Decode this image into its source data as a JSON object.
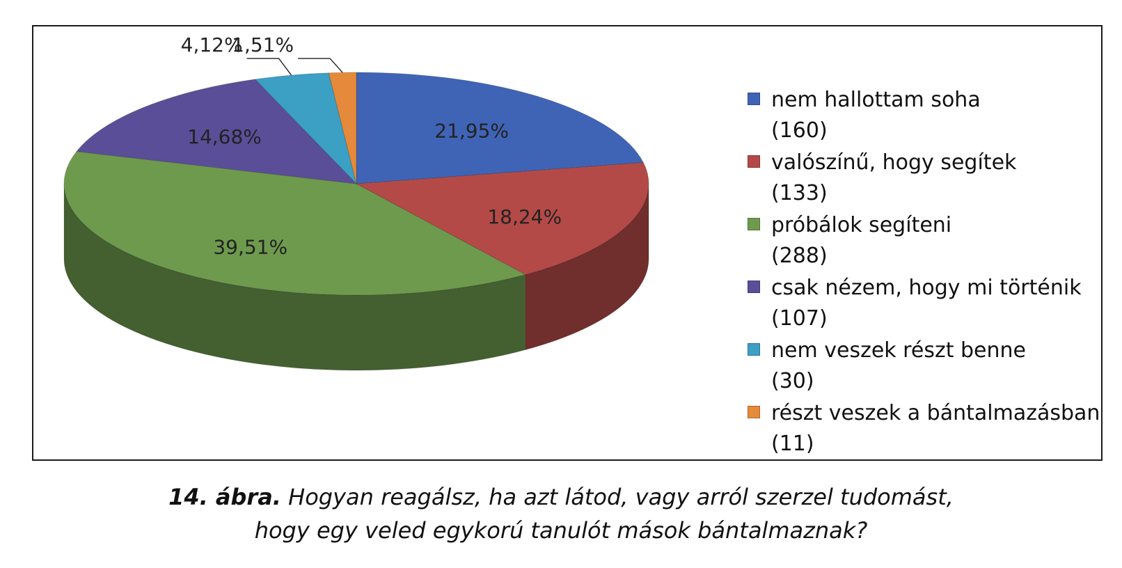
{
  "chart_data": {
    "type": "pie",
    "style": "3d",
    "legend_position": "right",
    "slices": [
      {
        "label": "nem hallottam soha",
        "count": "(160)",
        "value": 21.95,
        "display": "21,95%",
        "color": "#3f64b6"
      },
      {
        "label": "valószínű, hogy segítek",
        "count": "(133)",
        "value": 18.24,
        "display": "18,24%",
        "color": "#b44a47"
      },
      {
        "label": "próbálok segíteni",
        "count": "(288)",
        "value": 39.51,
        "display": "39,51%",
        "color": "#6e9a4e"
      },
      {
        "label": "csak nézem, hogy mi történik",
        "count": "(107)",
        "value": 14.68,
        "display": "14,68%",
        "color": "#5b4e98"
      },
      {
        "label": "nem veszek részt benne",
        "count": "(30)",
        "value": 4.12,
        "display": "4,12%",
        "color": "#3c9fc4"
      },
      {
        "label": "részt veszek a bántalmazásban",
        "count": "(11)",
        "value": 1.51,
        "display": "1,51%",
        "color": "#e58a3a"
      }
    ]
  },
  "caption": {
    "number": "14. ábra.",
    "line1": "Hogyan reagálsz, ha azt látod, vagy arról szerzel tudomást,",
    "line2": "hogy egy veled egykorú tanulót mások bántalmaznak?"
  }
}
